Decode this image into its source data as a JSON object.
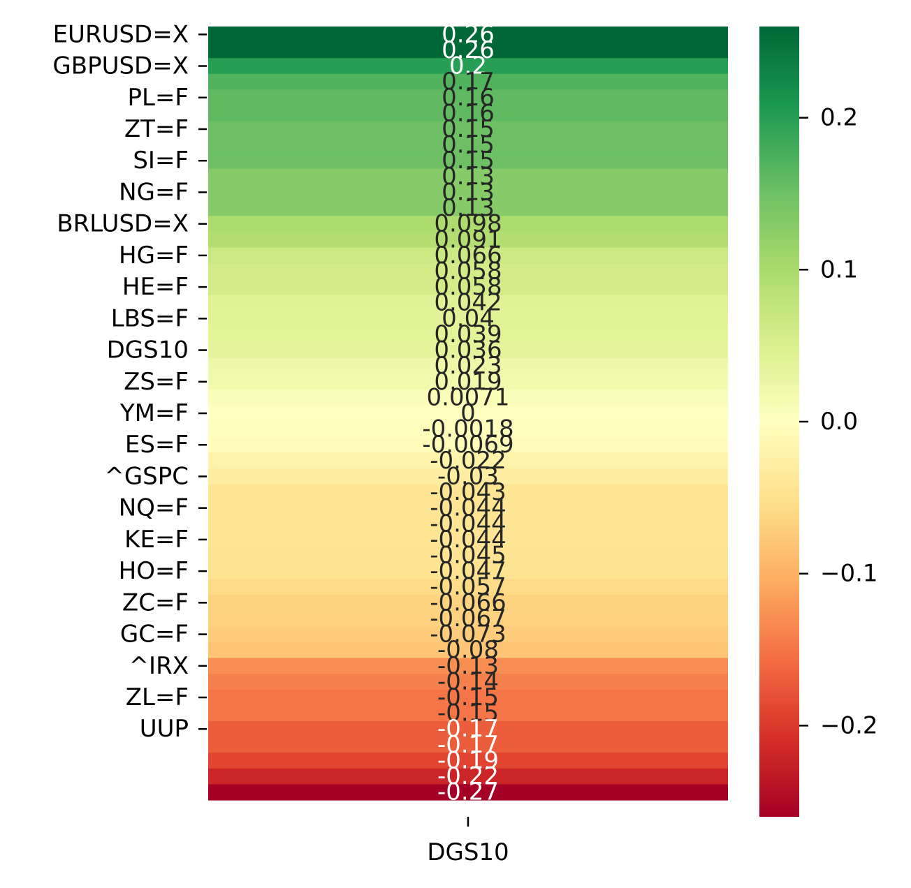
{
  "chart_data": {
    "type": "heatmap",
    "title": "",
    "xlabel": "",
    "ylabel": "",
    "colormap": "RdYlGn",
    "x_categories": [
      "DGS10"
    ],
    "y_labeled": [
      "EURUSD=X",
      "GBPUSD=X",
      "PL=F",
      "ZT=F",
      "SI=F",
      "NG=F",
      "BRLUSD=X",
      "HG=F",
      "HE=F",
      "LBS=F",
      "DGS10",
      "ZS=F",
      "YM=F",
      "ES=F",
      "^GSPC",
      "NQ=F",
      "KE=F",
      "HO=F",
      "ZC=F",
      "GC=F",
      "^IRX",
      "ZL=F",
      "UUP"
    ],
    "cells": [
      "0.26",
      "0.26",
      "0.2",
      "0.17",
      "0.16",
      "0.16",
      "0.15",
      "0.15",
      "0.15",
      "0.13",
      "0.13",
      "0.13",
      "0.098",
      "0.091",
      "0.066",
      "0.058",
      "0.058",
      "0.042",
      "0.04",
      "0.039",
      "0.036",
      "0.023",
      "0.019",
      "0.0071",
      "0",
      "-0.0018",
      "-0.0069",
      "-0.022",
      "-0.03",
      "-0.043",
      "-0.044",
      "-0.044",
      "-0.044",
      "-0.045",
      "-0.047",
      "-0.057",
      "-0.066",
      "-0.067",
      "-0.073",
      "-0.08",
      "-0.13",
      "-0.14",
      "-0.15",
      "-0.15",
      "-0.17",
      "-0.17",
      "-0.19",
      "-0.22",
      "-0.27"
    ],
    "colorbar": {
      "range": [
        -0.26,
        0.26
      ],
      "ticks": [
        0.2,
        0.1,
        0.0,
        -0.1,
        -0.2
      ],
      "tick_labels": [
        "0.2",
        "0.1",
        "0.0",
        "−0.1",
        "−0.2"
      ]
    }
  }
}
